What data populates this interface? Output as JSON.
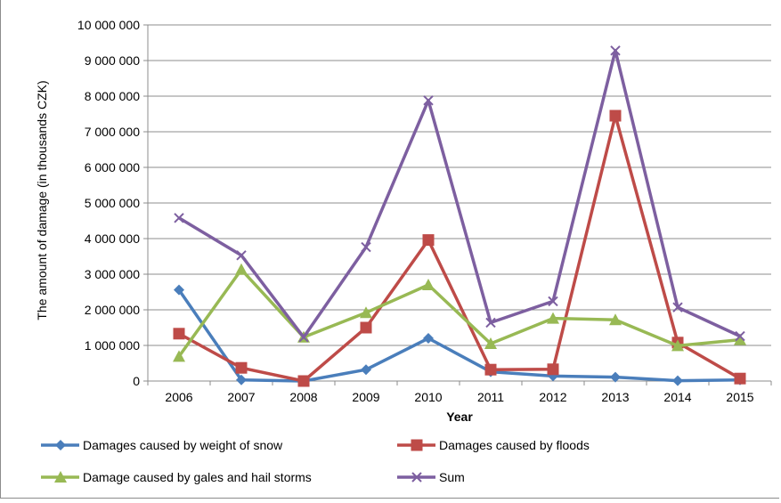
{
  "chart_data": {
    "type": "line",
    "title": "",
    "xlabel": "Year",
    "ylabel": "The amount of damage (in thousands CZK)",
    "x": [
      "2006",
      "2007",
      "2008",
      "2009",
      "2010",
      "2011",
      "2012",
      "2013",
      "2014",
      "2015"
    ],
    "ylim": [
      0,
      10000000
    ],
    "yticks": [
      0,
      1000000,
      2000000,
      3000000,
      4000000,
      5000000,
      6000000,
      7000000,
      8000000,
      9000000,
      10000000
    ],
    "ytick_labels": [
      "0",
      "1 000 000",
      "2 000 000",
      "3 000 000",
      "4 000 000",
      "5 000 000",
      "6 000 000",
      "7 000 000",
      "8 000 000",
      "9 000 000",
      "10 000 000"
    ],
    "grid": true,
    "legend_position": "bottom",
    "series": [
      {
        "name": "Damages caused by weight of snow",
        "color": "#4a7ebb",
        "marker": "diamond",
        "values": [
          2560000,
          30000,
          0,
          320000,
          1200000,
          260000,
          140000,
          110000,
          10000,
          30000
        ]
      },
      {
        "name": "Damages caused by floods",
        "color": "#be4b48",
        "marker": "square",
        "values": [
          1330000,
          370000,
          0,
          1500000,
          3960000,
          320000,
          330000,
          7450000,
          1080000,
          70000
        ]
      },
      {
        "name": "Damage caused by gales and hail storms",
        "color": "#98b954",
        "marker": "triangle",
        "values": [
          690000,
          3130000,
          1230000,
          1920000,
          2700000,
          1050000,
          1760000,
          1720000,
          990000,
          1160000
        ]
      },
      {
        "name": "Sum",
        "color": "#7d5fa0",
        "marker": "x",
        "values": [
          4580000,
          3530000,
          1230000,
          3760000,
          7880000,
          1640000,
          2240000,
          9280000,
          2070000,
          1260000
        ]
      }
    ]
  }
}
